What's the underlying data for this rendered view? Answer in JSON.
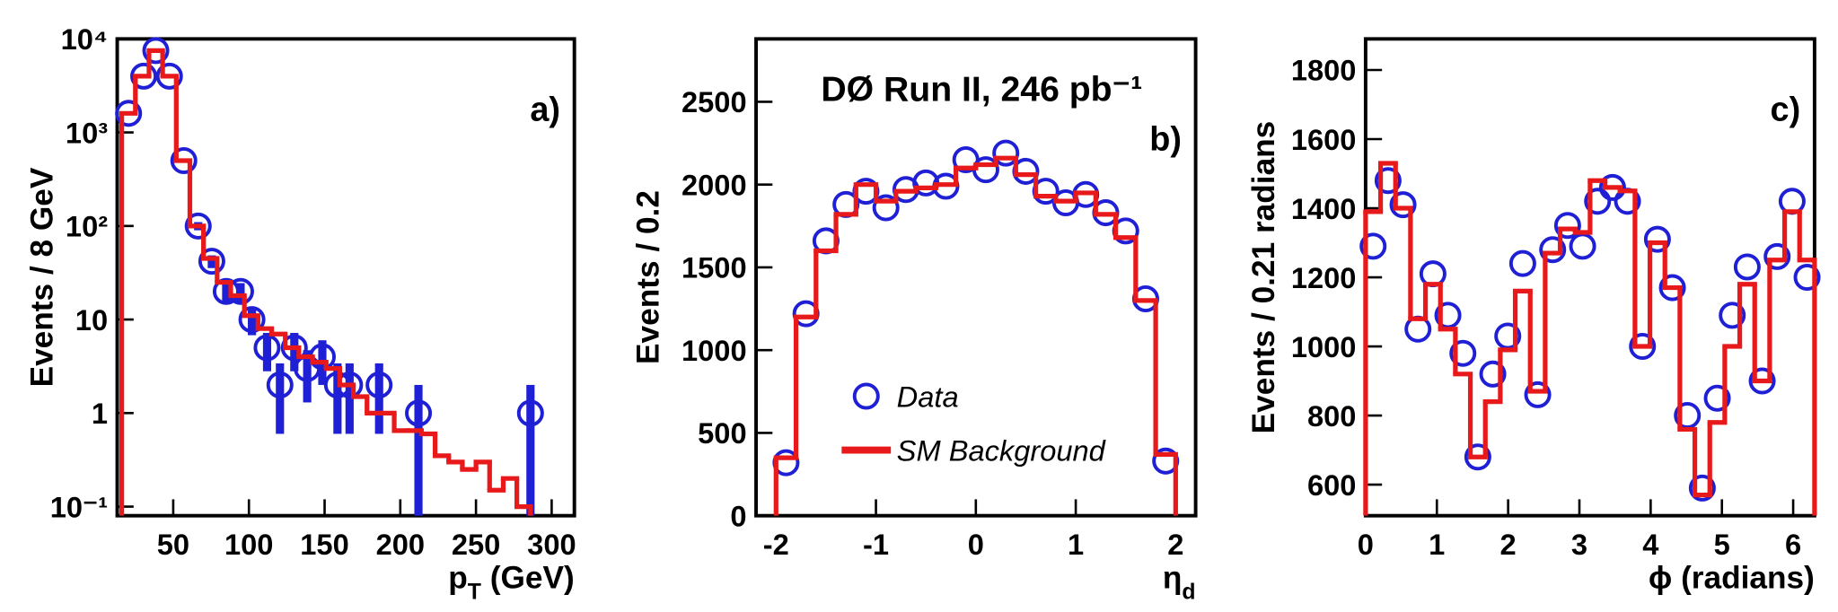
{
  "chart_data": [
    {
      "type": "histogram",
      "label": "a)",
      "ylabel": "Events / 8 GeV",
      "xlabel": {
        "text": "p",
        "sub": "T",
        "suffix": " (GeV)"
      },
      "xlim": [
        13,
        315
      ],
      "ylim": [
        0.08,
        10000
      ],
      "log_y": true,
      "xticks": [
        50,
        100,
        150,
        200,
        250,
        300
      ],
      "yticks": [
        {
          "value": 0.1,
          "label": "10⁻¹"
        },
        1,
        10,
        {
          "value": 100,
          "label": "10²"
        },
        {
          "value": 1000,
          "label": "10³"
        },
        {
          "value": 10000,
          "label": "10⁴"
        }
      ],
      "series": [
        {
          "color": "#1f1fd6",
          "x": [
            20.5,
            30.5,
            38.5,
            47.5,
            57,
            66.5,
            75.5,
            85,
            94.5,
            102,
            112,
            120.5,
            130,
            138.5,
            148.5,
            158.5,
            166.5,
            186,
            212,
            286
          ],
          "values": [
            1600,
            4000,
            7500,
            4000,
            500,
            100,
            42,
            20,
            20,
            10,
            5,
            2,
            5,
            3,
            4,
            2,
            2,
            2,
            1,
            1
          ],
          "errors": [
            40,
            63,
            87,
            63,
            22,
            10,
            6.5,
            4.5,
            4.5,
            3.2,
            2.2,
            1.4,
            2.2,
            1.7,
            2,
            1.4,
            1.4,
            1.4,
            1,
            1
          ]
        },
        {
          "color": "#e8191a",
          "bins": [
            16,
            25,
            34,
            43,
            52,
            61,
            70,
            79,
            88,
            97,
            106,
            115,
            124,
            133,
            142,
            151,
            160,
            169,
            178,
            187,
            196,
            205,
            214,
            223,
            232,
            241,
            250,
            259,
            268,
            277,
            286
          ],
          "values": [
            1600,
            4000,
            7500,
            4000,
            500,
            100,
            45,
            25,
            18,
            11,
            8,
            7,
            5,
            4,
            3.5,
            3,
            2,
            1.5,
            1,
            1,
            0.65,
            0.65,
            0.6,
            0.35,
            0.3,
            0.25,
            0.3,
            0.15,
            0.2,
            0.1
          ]
        }
      ]
    },
    {
      "type": "histogram",
      "label": "b)",
      "ylabel": "Events / 0.2",
      "xlabel": {
        "text": "η",
        "sub": "d"
      },
      "annotation": "DØ Run II, 246 pb⁻¹",
      "xlim": [
        -2.2,
        2.2
      ],
      "ylim": [
        0,
        2880
      ],
      "xticks": [
        -2,
        -1,
        0,
        1,
        2
      ],
      "yticks": [
        0,
        500,
        1000,
        1500,
        2000,
        2500
      ],
      "series": [
        {
          "name": "Data",
          "color": "#1f1fd6",
          "x": [
            -1.9,
            -1.7,
            -1.5,
            -1.3,
            -1.1,
            -0.9,
            -0.7,
            -0.5,
            -0.3,
            -0.1,
            0.1,
            0.3,
            0.5,
            0.7,
            0.9,
            1.1,
            1.3,
            1.5,
            1.7,
            1.9
          ],
          "values": [
            320,
            1220,
            1660,
            1880,
            1960,
            1860,
            1970,
            2010,
            1990,
            2150,
            2090,
            2190,
            2080,
            1960,
            1890,
            1940,
            1830,
            1720,
            1310,
            330
          ]
        },
        {
          "name": "SM Background",
          "color": "#e8191a",
          "bins": [
            -2,
            -1.8,
            -1.6,
            -1.4,
            -1.2,
            -1,
            -0.8,
            -0.6,
            -0.4,
            -0.2,
            0,
            0.2,
            0.4,
            0.6,
            0.8,
            1,
            1.2,
            1.4,
            1.6,
            1.8,
            2
          ],
          "values": [
            350,
            1200,
            1600,
            1820,
            2000,
            1900,
            1960,
            1980,
            2000,
            2100,
            2120,
            2160,
            2060,
            1930,
            1900,
            1950,
            1820,
            1680,
            1300,
            370
          ]
        }
      ]
    },
    {
      "type": "histogram",
      "label": "c)",
      "ylabel": "Events / 0.21 radians",
      "xlabel": {
        "text": "ϕ (radians)"
      },
      "xlim": [
        0,
        6.3
      ],
      "ylim": [
        510,
        1890
      ],
      "xticks": [
        0,
        1,
        2,
        3,
        4,
        5,
        6
      ],
      "yticks": [
        600,
        800,
        1000,
        1200,
        1400,
        1600,
        1800
      ],
      "series": [
        {
          "color": "#1f1fd6",
          "x": [
            0.105,
            0.315,
            0.525,
            0.735,
            0.945,
            1.155,
            1.365,
            1.575,
            1.785,
            1.995,
            2.205,
            2.415,
            2.625,
            2.835,
            3.045,
            3.255,
            3.465,
            3.675,
            3.885,
            4.095,
            4.305,
            4.515,
            4.725,
            4.935,
            5.145,
            5.355,
            5.565,
            5.775,
            5.985,
            6.195
          ],
          "values": [
            1290,
            1480,
            1410,
            1050,
            1210,
            1090,
            980,
            680,
            920,
            1030,
            1240,
            860,
            1280,
            1350,
            1290,
            1420,
            1460,
            1420,
            1000,
            1310,
            1170,
            800,
            590,
            850,
            1090,
            1230,
            900,
            1260,
            1420,
            1200
          ]
        },
        {
          "color": "#e8191a",
          "bins": [
            0,
            0.21,
            0.42,
            0.63,
            0.84,
            1.05,
            1.26,
            1.47,
            1.68,
            1.89,
            2.1,
            2.31,
            2.52,
            2.73,
            2.94,
            3.15,
            3.36,
            3.57,
            3.78,
            3.99,
            4.2,
            4.41,
            4.62,
            4.83,
            5.04,
            5.25,
            5.46,
            5.67,
            5.88,
            6.09,
            6.3
          ],
          "values": [
            1390,
            1530,
            1400,
            1080,
            1180,
            1050,
            920,
            680,
            840,
            990,
            1160,
            870,
            1270,
            1340,
            1330,
            1480,
            1460,
            1450,
            1000,
            1300,
            1170,
            760,
            570,
            780,
            1000,
            1180,
            900,
            1250,
            1390,
            1250
          ]
        }
      ]
    }
  ]
}
